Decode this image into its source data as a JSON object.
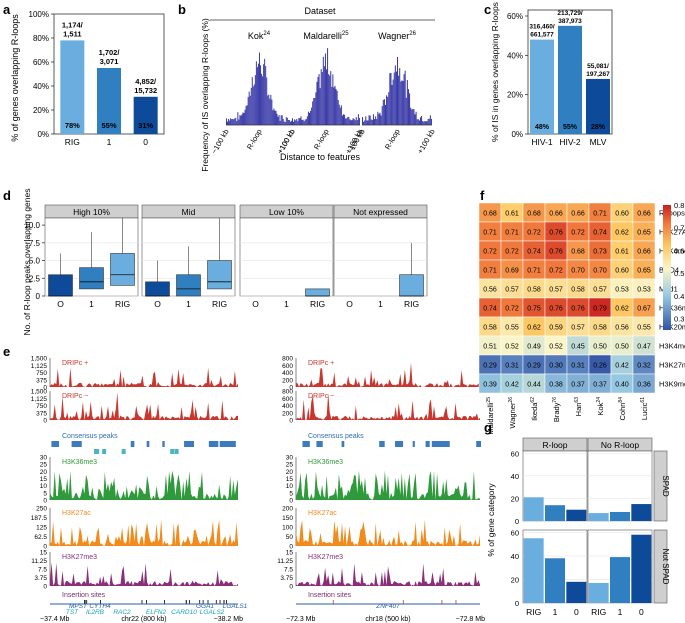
{
  "panel_letters": [
    "a",
    "b",
    "c",
    "d",
    "e",
    "f",
    "g"
  ],
  "colors": {
    "light": "#6aaee0",
    "mid": "#2f7fc1",
    "dark": "#0d4a99",
    "gray": "#cfcfcf",
    "red": "#c7372f",
    "teal": "#19a2b5",
    "green": "#2e9a3b",
    "orange": "#f28a1c",
    "purple": "#8a2e7a"
  },
  "chart_data": [
    {
      "panel": "a",
      "type": "bar",
      "ylabel": "% of genes overlapping R-loops",
      "categories": [
        "RIG",
        "1",
        "0"
      ],
      "values": [
        78,
        55,
        31
      ],
      "percent_labels": [
        "78%",
        "55%",
        "31%"
      ],
      "count_labels": [
        "1,174/\n1,511",
        "1,702/\n3,071",
        "4,852/\n15,732"
      ],
      "yticks": [
        "0%",
        "20%",
        "40%",
        "60%",
        "80%",
        "100%"
      ],
      "ylim": [
        0,
        100
      ]
    },
    {
      "panel": "b",
      "type": "area",
      "header": "Dataset",
      "ylabel": "Frequency of IS overlapping R-loops (%)",
      "xlabel": "Distance to features",
      "datasets": [
        {
          "name": "Kok",
          "ref": "24"
        },
        {
          "name": "Maldarelli",
          "ref": "25"
        },
        {
          "name": "Wagner",
          "ref": "26"
        }
      ],
      "xticks": [
        "−100 kb",
        "R-loop",
        "+100 kb"
      ]
    },
    {
      "panel": "c",
      "type": "bar",
      "ylabel": "% of IS in genes overlapping R-loops",
      "categories": [
        "HIV-1",
        "HIV-2",
        "MLV"
      ],
      "values": [
        48,
        55,
        28
      ],
      "percent_labels": [
        "48%",
        "55%",
        "28%"
      ],
      "count_labels": [
        "316,460/\n661,577",
        "213,729/\n387,973",
        "55,081/\n197,267"
      ],
      "yticks": [
        "0%",
        "20%",
        "40%",
        "60%"
      ],
      "ylim": [
        0,
        60
      ]
    },
    {
      "panel": "d",
      "type": "box",
      "ylabel": "No. of R-loop peaks overlapping genes",
      "facets": [
        "High 10%",
        "Mid",
        "Low 10%",
        "Not expressed"
      ],
      "categories": [
        "O",
        "1",
        "RIG"
      ],
      "yticks": [
        "0",
        "2.5",
        "5.0",
        "7.5",
        "10.0"
      ],
      "ylim": [
        0,
        11
      ],
      "boxes": [
        [
          {
            "q1": 0,
            "med": 0,
            "q3": 3,
            "hi": 6
          },
          {
            "q1": 1,
            "med": 2,
            "q3": 4,
            "hi": 9
          },
          {
            "q1": 1.5,
            "med": 3,
            "q3": 6,
            "hi": 11
          }
        ],
        [
          {
            "q1": 0,
            "med": 0,
            "q3": 2,
            "hi": 5
          },
          {
            "q1": 0,
            "med": 1,
            "q3": 3,
            "hi": 7
          },
          {
            "q1": 1,
            "med": 2,
            "q3": 5,
            "hi": 11
          }
        ],
        [
          null,
          null,
          {
            "q1": 0,
            "med": 0,
            "q3": 1,
            "hi": 1
          }
        ],
        [
          null,
          null,
          {
            "q1": 0,
            "med": 0,
            "q3": 3,
            "hi": 7.5
          }
        ]
      ]
    },
    {
      "panel": "f",
      "type": "heatmap",
      "columns": [
        {
          "name": "Maldarelli",
          "ref": "25"
        },
        {
          "name": "Wagner",
          "ref": "26"
        },
        {
          "name": "Ikeda",
          "ref": "62"
        },
        {
          "name": "Brady",
          "ref": "76"
        },
        {
          "name": "Han",
          "ref": "63"
        },
        {
          "name": "Kok",
          "ref": "24"
        },
        {
          "name": "Cohn",
          "ref": "84"
        },
        {
          "name": "Lucic",
          "ref": "61"
        }
      ],
      "rows": [
        "R-loops",
        "H3K27Ac",
        "H3K4me1",
        "BRD4",
        "Med1",
        "H3K36me3",
        "H4K20me1",
        "H3K4me3",
        "H3K27me3",
        "H3K9me2"
      ],
      "values": [
        [
          0.68,
          0.61,
          0.68,
          0.66,
          0.66,
          0.71,
          0.6,
          0.66
        ],
        [
          0.71,
          0.71,
          0.72,
          0.76,
          0.72,
          0.74,
          0.62,
          0.65
        ],
        [
          0.72,
          0.72,
          0.74,
          0.76,
          0.68,
          0.73,
          0.61,
          0.66
        ],
        [
          0.71,
          0.69,
          0.71,
          0.72,
          0.7,
          0.7,
          0.6,
          0.65
        ],
        [
          0.56,
          0.57,
          0.58,
          0.57,
          0.58,
          0.57,
          0.53,
          0.53
        ],
        [
          0.74,
          0.72,
          0.75,
          0.76,
          0.76,
          0.79,
          0.62,
          0.67
        ],
        [
          0.58,
          0.55,
          0.62,
          0.59,
          0.57,
          0.58,
          0.56,
          0.55
        ],
        [
          0.51,
          0.52,
          0.49,
          0.52,
          0.45,
          0.5,
          0.5,
          0.47
        ],
        [
          0.29,
          0.31,
          0.29,
          0.3,
          0.31,
          0.26,
          0.42,
          0.32
        ],
        [
          0.39,
          0.42,
          0.44,
          0.38,
          0.37,
          0.37,
          0.4,
          0.36
        ]
      ],
      "colorbar_ticks": [
        "0.8",
        "0.7",
        "0.6",
        "0.5",
        "0.4",
        "0.3"
      ],
      "vmin": 0.25,
      "vmax": 0.8
    },
    {
      "panel": "g",
      "type": "bar",
      "ylabel": "% of gene category",
      "col_facets": [
        "R-loop",
        "No R-loop"
      ],
      "row_facets": [
        "SPAD",
        "Not SPAD"
      ],
      "categories": [
        "RIG",
        "1",
        "0"
      ],
      "yticks": [
        "0",
        "20",
        "40",
        "60"
      ],
      "ylim": [
        0,
        62
      ],
      "values": [
        [
          [
            21,
            14,
            10
          ],
          [
            7,
            8,
            15
          ]
        ],
        [
          [
            55,
            38,
            18
          ],
          [
            17,
            39,
            58
          ]
        ]
      ]
    }
  ],
  "panel_e": {
    "tracks": [
      {
        "label": "DRIPc +",
        "ticks": [
          "1,500",
          "1,125",
          "750",
          "375",
          "0"
        ],
        "right_ticks": [
          "800",
          "600",
          "400",
          "200",
          "0"
        ]
      },
      {
        "label": "DRIPc −",
        "ticks": [
          "1,500",
          "1,125",
          "750",
          "375",
          "0"
        ],
        "right_ticks": [
          "800",
          "600",
          "400",
          "200",
          "0"
        ]
      },
      {
        "label": "Consensus peaks"
      },
      {
        "label": "H3K36me3",
        "ticks": [
          "30",
          "25",
          "20",
          "15",
          "10",
          "5",
          "0"
        ],
        "right_ticks": [
          "30",
          "25",
          "20",
          "15",
          "10",
          "5",
          "0"
        ]
      },
      {
        "label": "H3K27ac",
        "ticks": [
          "250",
          "187.5",
          "125",
          "62.5",
          "0"
        ],
        "right_ticks": [
          "200",
          "150",
          "100",
          "50",
          "0"
        ]
      },
      {
        "label": "H3K27me3",
        "ticks": [
          "15",
          "11.25",
          "7.5",
          "3.75",
          "0"
        ],
        "right_ticks": [
          "15",
          "11.25",
          "7.5",
          "3.75",
          "0"
        ]
      },
      {
        "label": "Insertion sites"
      }
    ],
    "left_genes": [
      "MPST",
      "CYTH4",
      "GGA1",
      "LGALS1",
      "TST",
      "IL2RB",
      "RAC2",
      "ELFN2",
      "CARD10",
      "LGALS2"
    ],
    "right_genes": [
      "ZNF407"
    ],
    "left_axis": [
      "−37.4 Mb",
      "chr22 (800 kb)",
      "−38.2 Mb"
    ],
    "right_axis": [
      "−72.3 Mb",
      "chr18 (500 kb)",
      "−72.8 Mb"
    ]
  }
}
